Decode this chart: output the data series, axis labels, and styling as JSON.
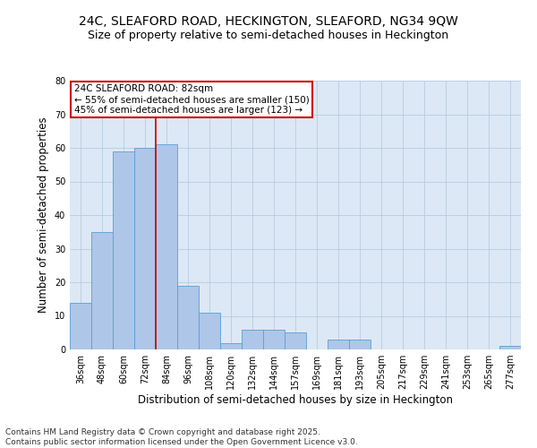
{
  "title1": "24C, SLEAFORD ROAD, HECKINGTON, SLEAFORD, NG34 9QW",
  "title2": "Size of property relative to semi-detached houses in Heckington",
  "xlabel": "Distribution of semi-detached houses by size in Heckington",
  "ylabel": "Number of semi-detached properties",
  "bins": [
    "36sqm",
    "48sqm",
    "60sqm",
    "72sqm",
    "84sqm",
    "96sqm",
    "108sqm",
    "120sqm",
    "132sqm",
    "144sqm",
    "157sqm",
    "169sqm",
    "181sqm",
    "193sqm",
    "205sqm",
    "217sqm",
    "229sqm",
    "241sqm",
    "253sqm",
    "265sqm",
    "277sqm"
  ],
  "values": [
    14,
    35,
    59,
    60,
    61,
    19,
    11,
    2,
    6,
    6,
    5,
    0,
    3,
    3,
    0,
    0,
    0,
    0,
    0,
    0,
    1
  ],
  "bar_color": "#aec6e8",
  "bar_edge_color": "#5a9fd4",
  "highlight_line_bin": 4,
  "annotation_title": "24C SLEAFORD ROAD: 82sqm",
  "annotation_line1": "← 55% of semi-detached houses are smaller (150)",
  "annotation_line2": "45% of semi-detached houses are larger (123) →",
  "annotation_box_color": "#ffffff",
  "annotation_box_edge_color": "#cc0000",
  "red_line_color": "#cc0000",
  "ylim": [
    0,
    80
  ],
  "yticks": [
    0,
    10,
    20,
    30,
    40,
    50,
    60,
    70,
    80
  ],
  "background_color": "#dce8f5",
  "footer1": "Contains HM Land Registry data © Crown copyright and database right 2025.",
  "footer2": "Contains public sector information licensed under the Open Government Licence v3.0.",
  "title_fontsize": 10,
  "subtitle_fontsize": 9,
  "axis_label_fontsize": 8.5,
  "tick_fontsize": 7,
  "annotation_fontsize": 7.5,
  "footer_fontsize": 6.5
}
